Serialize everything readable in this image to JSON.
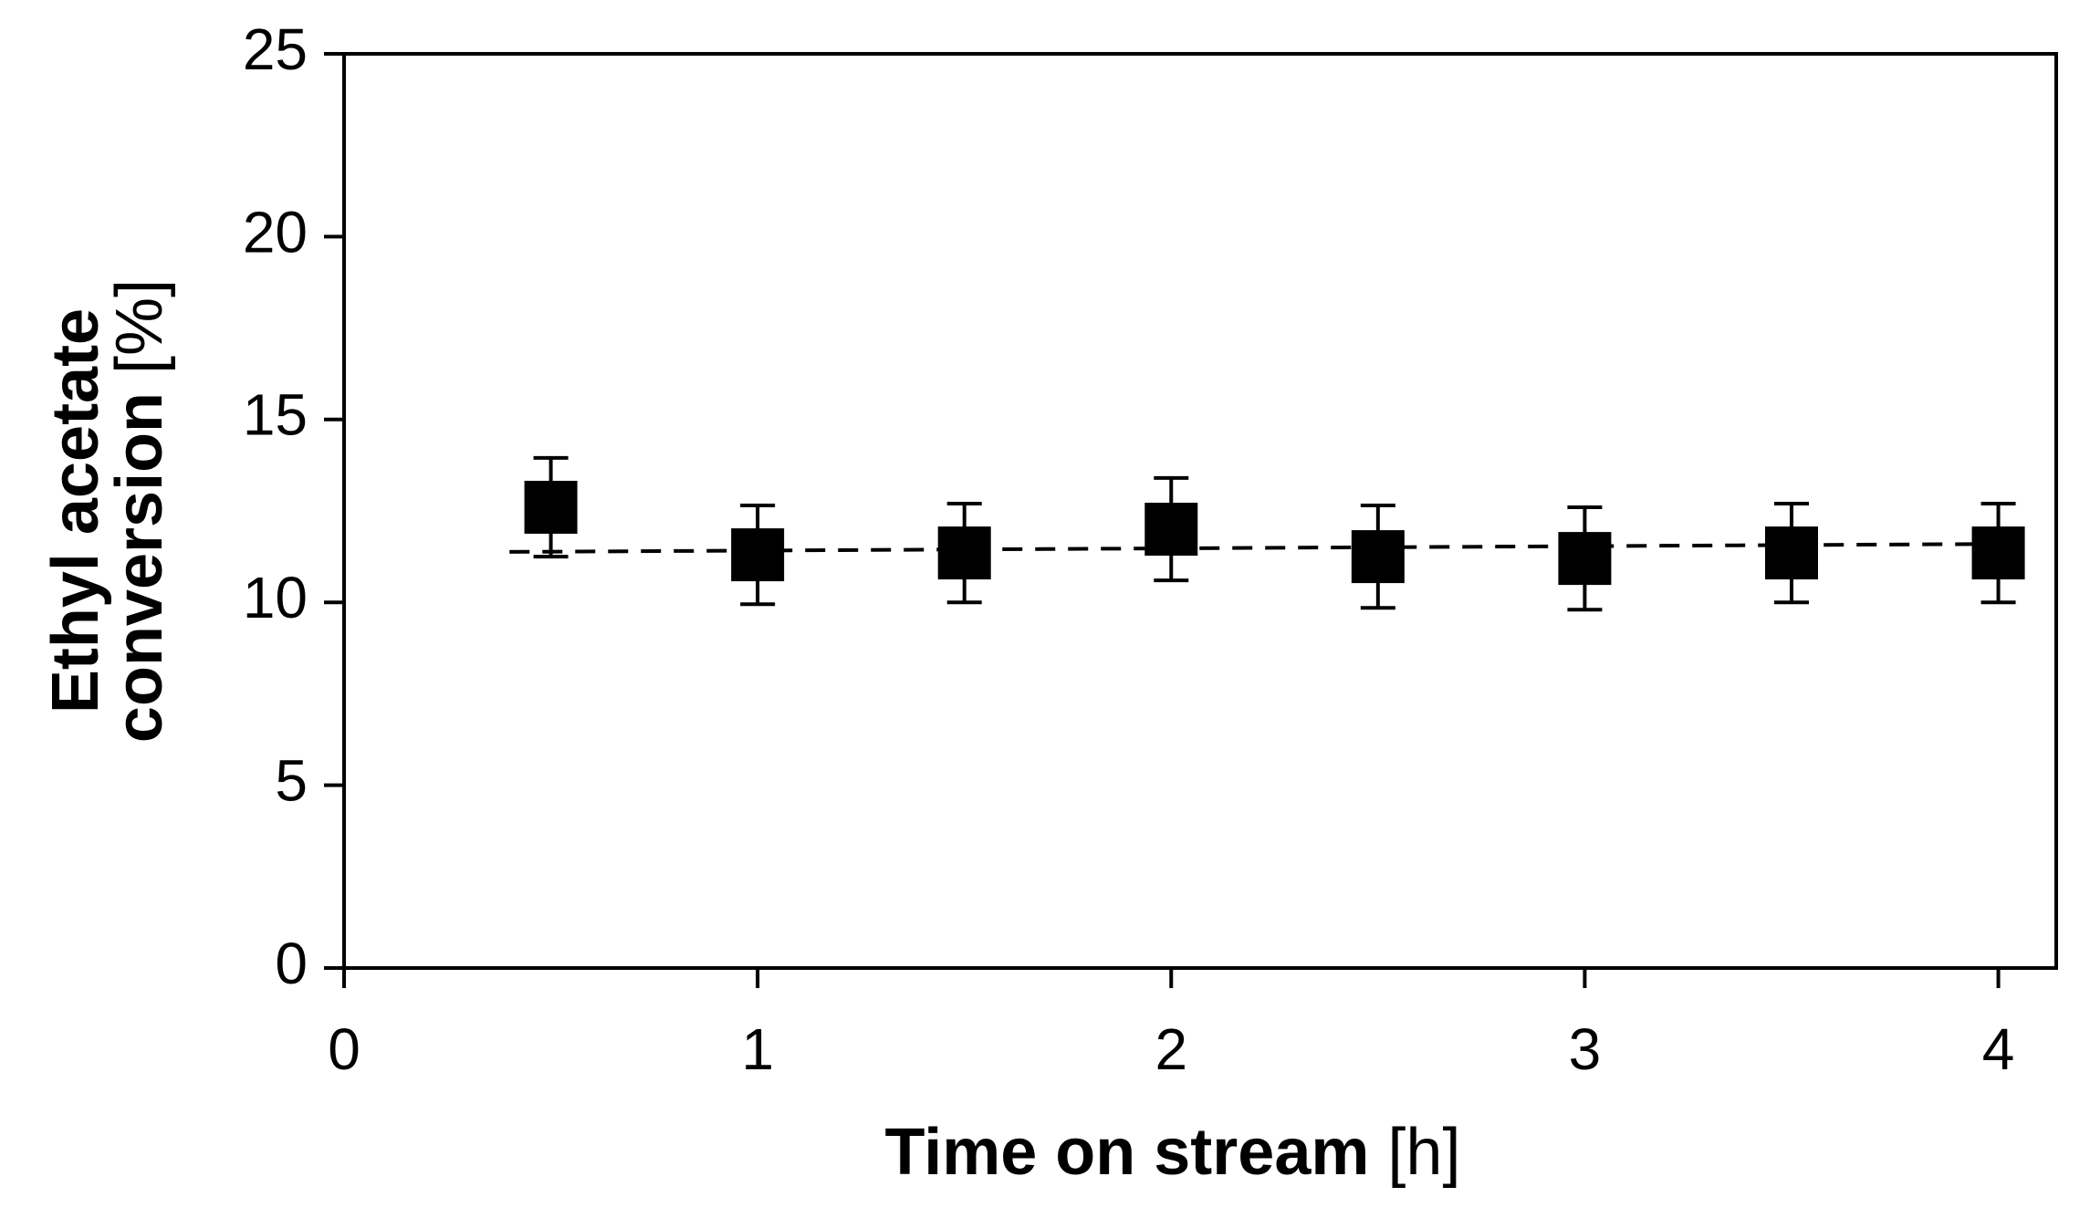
{
  "chart_data": {
    "type": "scatter",
    "ylabel": {
      "line1": "Ethyl acetate",
      "line2": "conversion",
      "unit": "[%]"
    },
    "xlabel": {
      "text": "Time on stream",
      "unit": "[h]"
    },
    "xlim": [
      0,
      4.14
    ],
    "xticks": [
      0,
      1,
      2,
      3,
      4
    ],
    "ylim": [
      0,
      25
    ],
    "yticks": [
      0,
      5,
      10,
      15,
      20,
      25
    ],
    "series": [
      {
        "color": "#000000",
        "x": [
          0.5,
          1,
          1.5,
          2,
          2.5,
          3,
          3.5,
          4
        ],
        "values": [
          12.6,
          11.3,
          11.35,
          12.0,
          11.25,
          11.2,
          11.35,
          11.35
        ],
        "errors": [
          1.35,
          1.35,
          1.35,
          1.4,
          1.4,
          1.4,
          1.35,
          1.35
        ]
      }
    ],
    "trendline": {
      "x": [
        0.4,
        4.05
      ],
      "values": [
        11.38,
        11.6
      ],
      "color": "#000000",
      "dashed": true
    }
  }
}
